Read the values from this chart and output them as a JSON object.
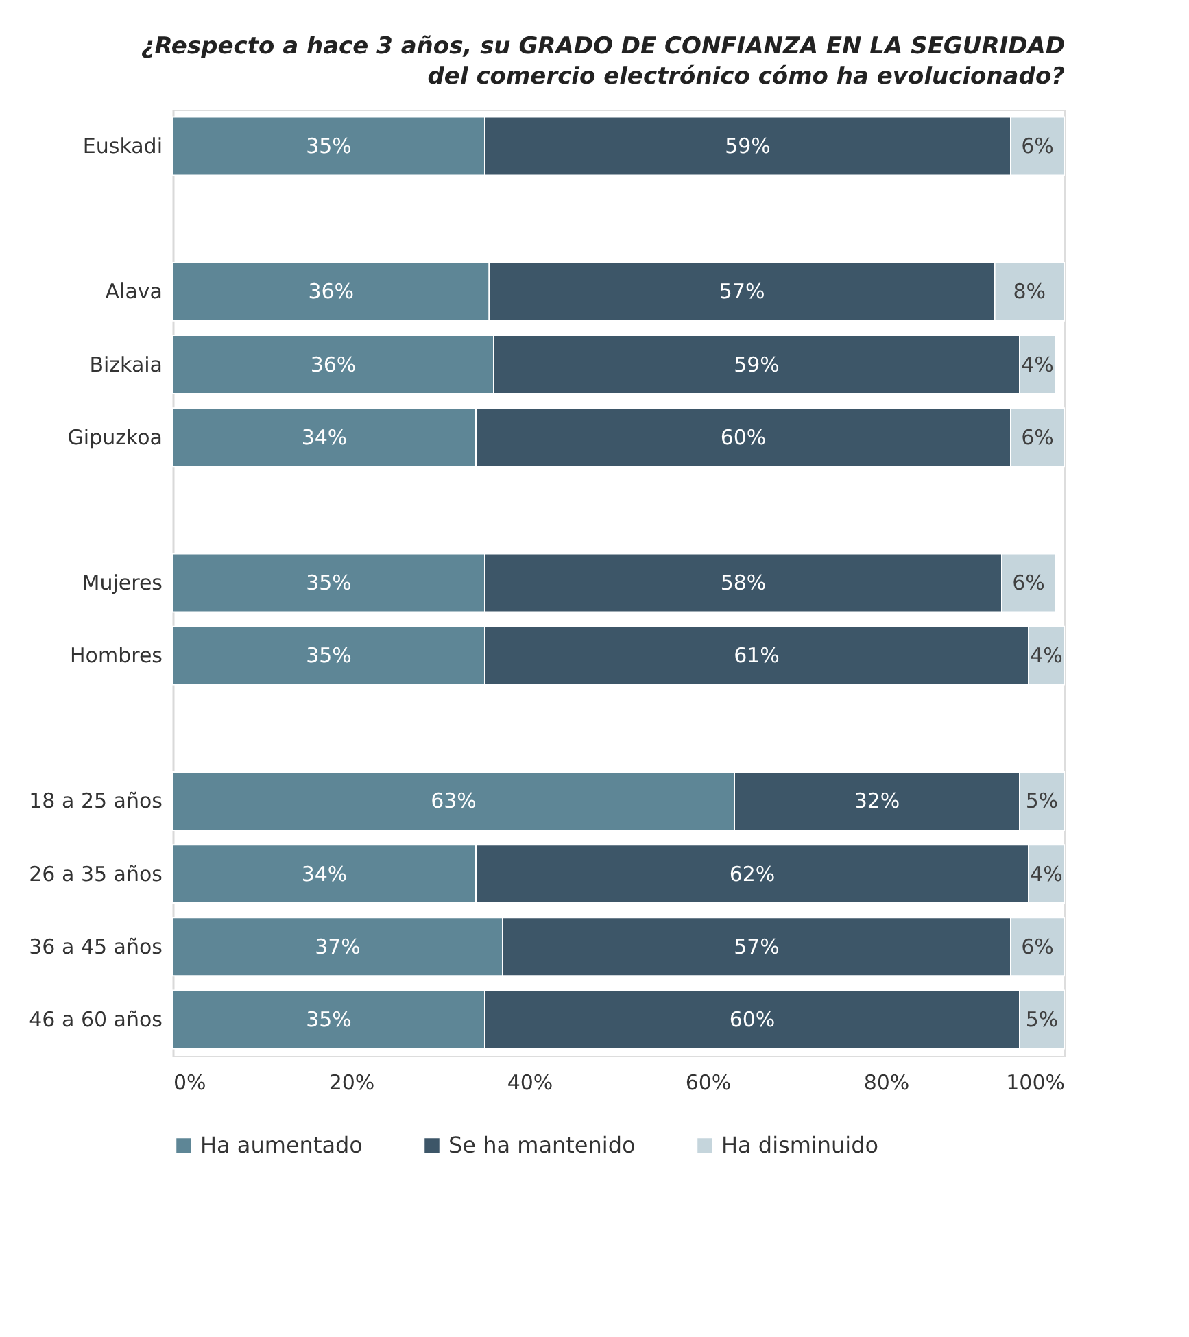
{
  "chart_data": {
    "type": "bar",
    "orientation": "horizontal",
    "stacked": true,
    "title": "¿Respecto a hace 3 años, su GRADO DE CONFIANZA EN LA SEGURIDAD del comercio electrónico cómo ha evolucionado?",
    "categories": [
      "Euskadi",
      null,
      "Alava",
      "Bizkaia",
      "Gipuzkoa",
      null,
      "Mujeres",
      "Hombres",
      null,
      "18 a 25 años",
      "26 a 35 años",
      "36 a 45 años",
      "46 a 60 años"
    ],
    "series": [
      {
        "name": "Ha aumentado",
        "color": "#5e8696",
        "values": [
          35,
          null,
          35.5,
          36,
          34,
          null,
          35,
          35,
          null,
          63,
          34,
          37,
          35
        ],
        "value_labels": [
          "35%",
          null,
          "36%",
          "36%",
          "34%",
          null,
          "35%",
          "35%",
          null,
          "63%",
          "34%",
          "37%",
          "35%"
        ]
      },
      {
        "name": "Se ha mantenido",
        "color": "#3d5668",
        "values": [
          59,
          null,
          56.7,
          59,
          60,
          null,
          58,
          61,
          null,
          32,
          62,
          57,
          60
        ],
        "value_labels": [
          "59%",
          null,
          "57%",
          "59%",
          "60%",
          null,
          "58%",
          "61%",
          null,
          "32%",
          "62%",
          "57%",
          "60%"
        ]
      },
      {
        "name": "Ha disminuido",
        "color": "#c5d5dc",
        "values": [
          6,
          null,
          7.8,
          4,
          6,
          null,
          6,
          4,
          null,
          5,
          4,
          6,
          5
        ],
        "value_labels": [
          "6%",
          null,
          "8%",
          "4%",
          "6%",
          null,
          "6%",
          "4%",
          null,
          "5%",
          "4%",
          "6%",
          "5%"
        ]
      }
    ],
    "xlim": [
      0,
      100
    ],
    "xticks": [
      {
        "value": 0,
        "label": "0%"
      },
      {
        "value": 20,
        "label": "20%"
      },
      {
        "value": 40,
        "label": "40%"
      },
      {
        "value": 60,
        "label": "60%"
      },
      {
        "value": 80,
        "label": "80%"
      },
      {
        "value": 100,
        "label": "100%"
      }
    ],
    "grid": false,
    "legend": "bottom"
  }
}
